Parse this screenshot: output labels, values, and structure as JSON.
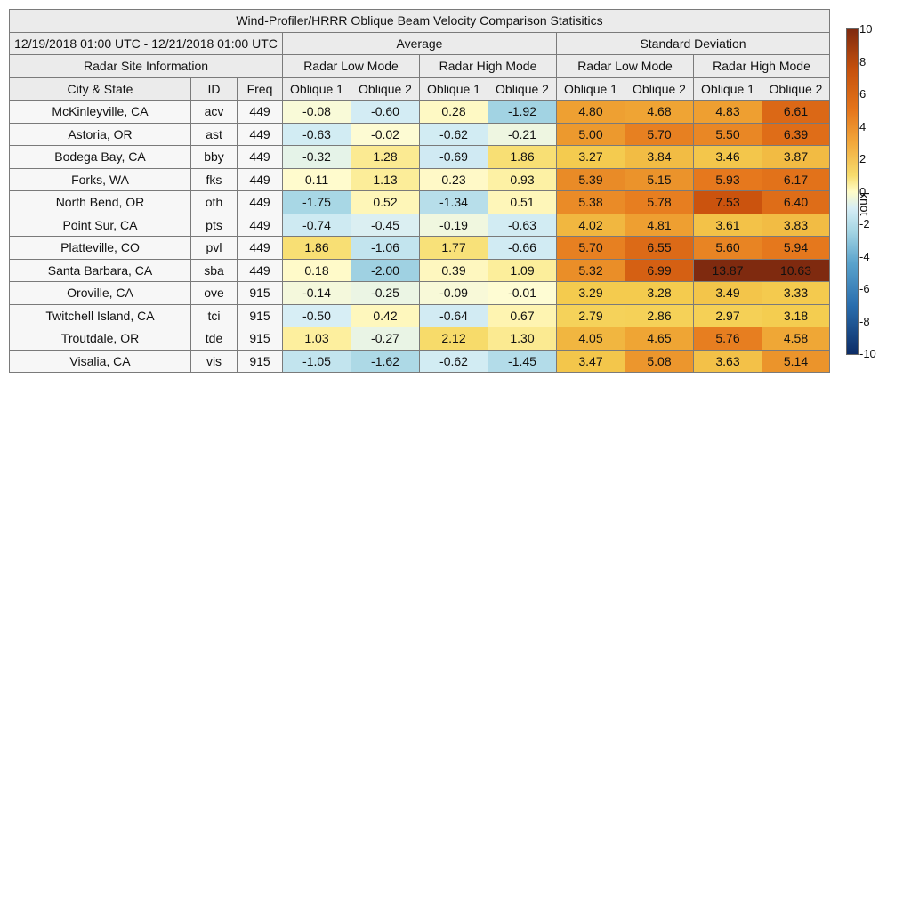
{
  "chart_data": {
    "type": "table",
    "title": "Wind-Profiler/HRRR Oblique Beam Velocity Comparison Statisitics",
    "date_range": "12/19/2018 01:00 UTC - 12/21/2018 01:00 UTC",
    "groups": {
      "average": "Average",
      "std": "Standard Deviation"
    },
    "site_info_header": "Radar Site Information",
    "modes": [
      "Radar Low Mode",
      "Radar High Mode",
      "Radar Low Mode",
      "Radar High Mode"
    ],
    "columns": {
      "city": "City & State",
      "id": "ID",
      "freq": "Freq",
      "beams": [
        "Oblique 1",
        "Oblique 2",
        "Oblique 1",
        "Oblique 2",
        "Oblique 1",
        "Oblique 2",
        "Oblique 1",
        "Oblique 2"
      ]
    },
    "rows": [
      {
        "city": "McKinleyville, CA",
        "id": "acv",
        "freq": "449",
        "values": [
          "-0.08",
          "-0.60",
          "0.28",
          "-1.92",
          "4.80",
          "4.68",
          "4.83",
          "6.61"
        ]
      },
      {
        "city": "Astoria, OR",
        "id": "ast",
        "freq": "449",
        "values": [
          "-0.63",
          "-0.02",
          "-0.62",
          "-0.21",
          "5.00",
          "5.70",
          "5.50",
          "6.39"
        ]
      },
      {
        "city": "Bodega Bay, CA",
        "id": "bby",
        "freq": "449",
        "values": [
          "-0.32",
          "1.28",
          "-0.69",
          "1.86",
          "3.27",
          "3.84",
          "3.46",
          "3.87"
        ]
      },
      {
        "city": "Forks, WA",
        "id": "fks",
        "freq": "449",
        "values": [
          "0.11",
          "1.13",
          "0.23",
          "0.93",
          "5.39",
          "5.15",
          "5.93",
          "6.17"
        ]
      },
      {
        "city": "North Bend, OR",
        "id": "oth",
        "freq": "449",
        "values": [
          "-1.75",
          "0.52",
          "-1.34",
          "0.51",
          "5.38",
          "5.78",
          "7.53",
          "6.40"
        ]
      },
      {
        "city": "Point Sur, CA",
        "id": "pts",
        "freq": "449",
        "values": [
          "-0.74",
          "-0.45",
          "-0.19",
          "-0.63",
          "4.02",
          "4.81",
          "3.61",
          "3.83"
        ]
      },
      {
        "city": "Platteville, CO",
        "id": "pvl",
        "freq": "449",
        "values": [
          "1.86",
          "-1.06",
          "1.77",
          "-0.66",
          "5.70",
          "6.55",
          "5.60",
          "5.94"
        ]
      },
      {
        "city": "Santa Barbara, CA",
        "id": "sba",
        "freq": "449",
        "values": [
          "0.18",
          "-2.00",
          "0.39",
          "1.09",
          "5.32",
          "6.99",
          "13.87",
          "10.63"
        ]
      },
      {
        "city": "Oroville, CA",
        "id": "ove",
        "freq": "915",
        "values": [
          "-0.14",
          "-0.25",
          "-0.09",
          "-0.01",
          "3.29",
          "3.28",
          "3.49",
          "3.33"
        ]
      },
      {
        "city": "Twitchell Island, CA",
        "id": "tci",
        "freq": "915",
        "values": [
          "-0.50",
          "0.42",
          "-0.64",
          "0.67",
          "2.79",
          "2.86",
          "2.97",
          "3.18"
        ]
      },
      {
        "city": "Troutdale, OR",
        "id": "tde",
        "freq": "915",
        "values": [
          "1.03",
          "-0.27",
          "2.12",
          "1.30",
          "4.05",
          "4.65",
          "5.76",
          "4.58"
        ]
      },
      {
        "city": "Visalia, CA",
        "id": "vis",
        "freq": "915",
        "values": [
          "-1.05",
          "-1.62",
          "-0.62",
          "-1.45",
          "3.47",
          "5.08",
          "3.63",
          "5.14"
        ]
      }
    ],
    "colorbar": {
      "label": "knot",
      "range": [
        -10,
        10
      ],
      "ticks": [
        "10",
        "8",
        "6",
        "4",
        "2",
        "0",
        "-2",
        "-4",
        "-6",
        "-8",
        "-10"
      ]
    }
  }
}
